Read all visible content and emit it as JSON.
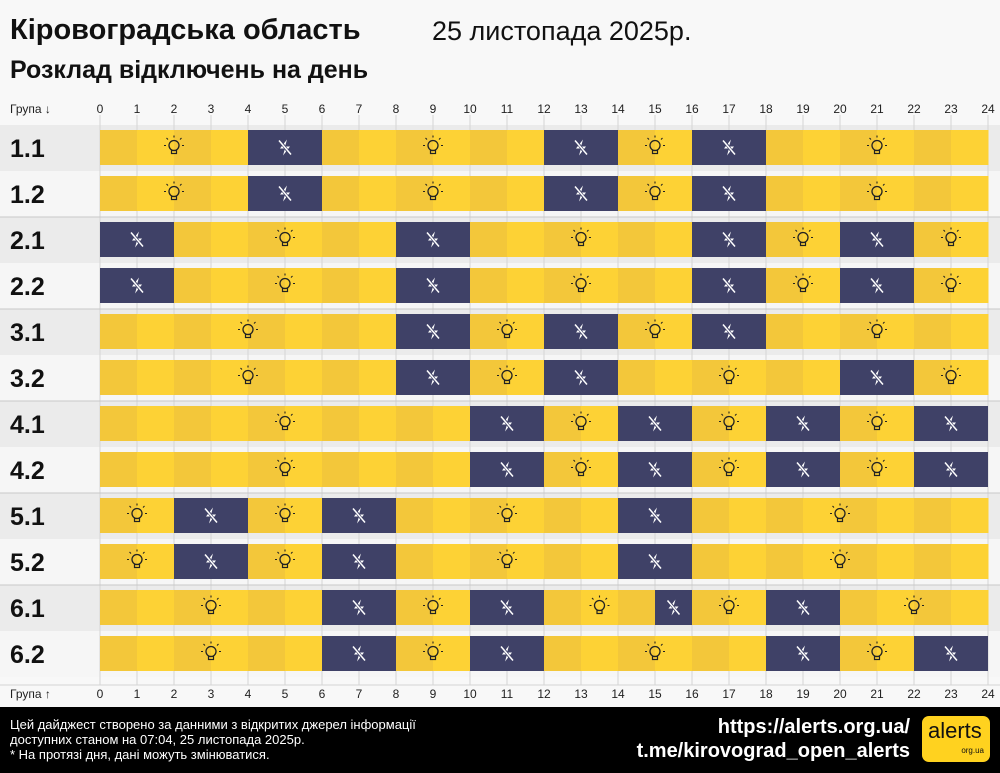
{
  "header": {
    "title": "Кіровоградська область",
    "date": "25 листопада 2025р.",
    "subtitle": "Розклад відключень на день"
  },
  "chart_data": {
    "type": "timeline",
    "xlabel_top": "Група ↓",
    "xlabel_bottom": "Група ↑",
    "xlim": [
      0,
      24
    ],
    "ticks": [
      0,
      1,
      2,
      3,
      4,
      5,
      6,
      7,
      8,
      9,
      10,
      11,
      12,
      13,
      14,
      15,
      16,
      17,
      18,
      19,
      20,
      21,
      22,
      23,
      24
    ],
    "groups": [
      {
        "name": "1.1",
        "off": [
          [
            4,
            6
          ],
          [
            12,
            14
          ],
          [
            16,
            18
          ]
        ]
      },
      {
        "name": "1.2",
        "off": [
          [
            4,
            6
          ],
          [
            12,
            14
          ],
          [
            16,
            18
          ]
        ]
      },
      {
        "name": "2.1",
        "off": [
          [
            0,
            2
          ],
          [
            8,
            10
          ],
          [
            16,
            18
          ],
          [
            20,
            22
          ]
        ]
      },
      {
        "name": "2.2",
        "off": [
          [
            0,
            2
          ],
          [
            8,
            10
          ],
          [
            16,
            18
          ],
          [
            20,
            22
          ]
        ]
      },
      {
        "name": "3.1",
        "off": [
          [
            8,
            10
          ],
          [
            12,
            14
          ],
          [
            16,
            18
          ]
        ]
      },
      {
        "name": "3.2",
        "off": [
          [
            8,
            10
          ],
          [
            12,
            14
          ],
          [
            20,
            22
          ]
        ]
      },
      {
        "name": "4.1",
        "off": [
          [
            10,
            12
          ],
          [
            14,
            16
          ],
          [
            18,
            20
          ],
          [
            22,
            24
          ]
        ]
      },
      {
        "name": "4.2",
        "off": [
          [
            10,
            12
          ],
          [
            14,
            16
          ],
          [
            18,
            20
          ],
          [
            22,
            24
          ]
        ]
      },
      {
        "name": "5.1",
        "off": [
          [
            2,
            4
          ],
          [
            6,
            8
          ],
          [
            14,
            16
          ]
        ]
      },
      {
        "name": "5.2",
        "off": [
          [
            2,
            4
          ],
          [
            6,
            8
          ],
          [
            14,
            16
          ]
        ]
      },
      {
        "name": "6.1",
        "off": [
          [
            6,
            8
          ],
          [
            10,
            12
          ],
          [
            15,
            16
          ],
          [
            18,
            20
          ]
        ]
      },
      {
        "name": "6.2",
        "off": [
          [
            6,
            8
          ],
          [
            10,
            12
          ],
          [
            18,
            20
          ],
          [
            22,
            24
          ]
        ]
      }
    ],
    "colors": {
      "on": "#fdd235",
      "on_alt": "#f3c73a",
      "off": "#3f4167"
    },
    "icons": {
      "on": "lightbulb-icon",
      "off": "power-off-icon"
    }
  },
  "footer": {
    "line1": "Цей дайджест створено за данними з відкритих джерел інформації",
    "line2": "доступних станом на 07:04, 25 листопада 2025р.",
    "line3": "* На протязі дня, дані можуть змінюватися.",
    "url": "https://alerts.org.ua/",
    "telegram": "t.me/kirovograd_open_alerts",
    "logo": "alerts",
    "logo_sub": "org.ua"
  }
}
